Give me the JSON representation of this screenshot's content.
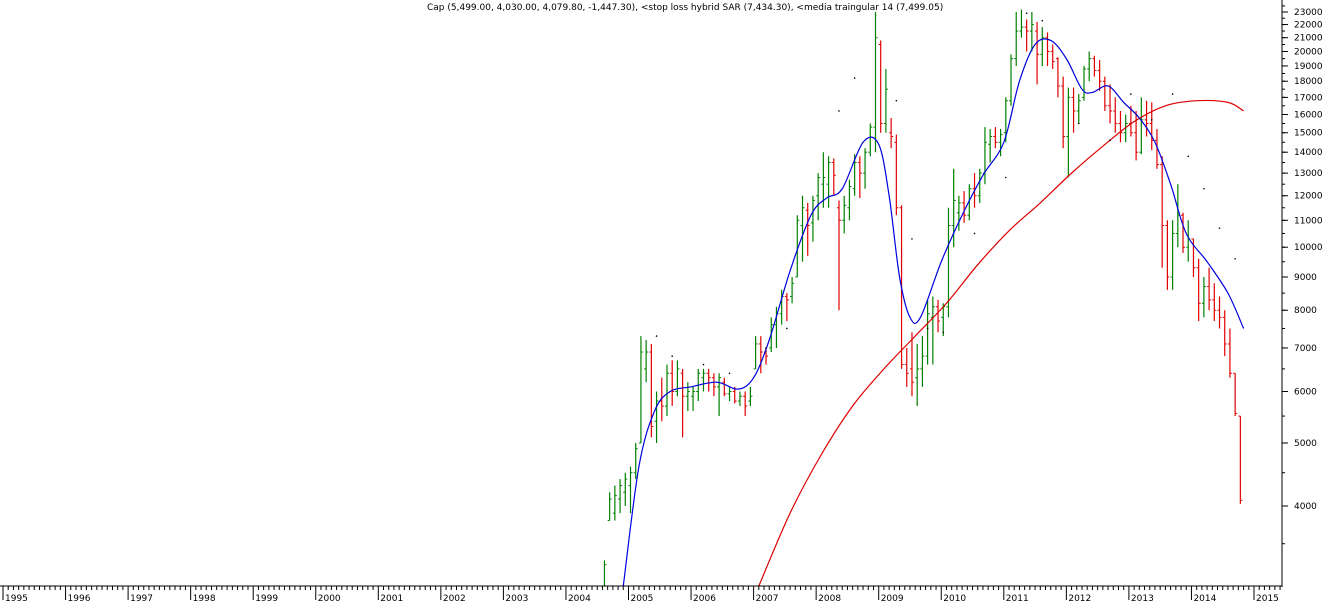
{
  "chart_data": {
    "type": "line",
    "title": "Cap (5,499.00, 4,030.00, 4,079.80, -1,447.30), <stop loss hybrid SAR (7,434.30), <media traingular 14 (7,499.05)",
    "y_scale": "log",
    "ylim": [
      3000,
      23500
    ],
    "xlim": [
      "1995-01",
      "2015-12"
    ],
    "y_ticks": [
      4000,
      5000,
      6000,
      7000,
      8000,
      9000,
      10000,
      11000,
      12000,
      13000,
      14000,
      15000,
      16000,
      17000,
      18000,
      19000,
      20000,
      21000,
      22000,
      23000
    ],
    "x_ticks": [
      "1995",
      "1996",
      "1997",
      "1998",
      "1999",
      "2000",
      "2001",
      "2002",
      "2003",
      "2004",
      "2005",
      "2006",
      "2007",
      "2008",
      "2009",
      "2010",
      "2011",
      "2012",
      "2013",
      "2014",
      "2015"
    ],
    "colors": {
      "up_bar": "#008000",
      "down_bar": "#e00000",
      "neutral_bar": "#000000",
      "triangular_ma": "#0000dd",
      "long_ma": "#dd0000",
      "sar": "#000000",
      "axis": "#000000"
    },
    "grid": false,
    "bars_monthly": [
      {
        "t": "2004-08",
        "o": 3000,
        "h": 3300,
        "l": 2800,
        "c": 3250
      },
      {
        "t": "2004-09",
        "o": 3800,
        "h": 4200,
        "l": 3800,
        "c": 4100
      },
      {
        "t": "2004-10",
        "o": 3900,
        "h": 4300,
        "l": 3800,
        "c": 4150
      },
      {
        "t": "2004-11",
        "o": 4100,
        "h": 4400,
        "l": 3900,
        "c": 4300
      },
      {
        "t": "2004-12",
        "o": 4200,
        "h": 4500,
        "l": 4000,
        "c": 4400
      },
      {
        "t": "2005-01",
        "o": 4300,
        "h": 4600,
        "l": 3900,
        "c": 4500
      },
      {
        "t": "2005-02",
        "o": 4500,
        "h": 5000,
        "l": 4400,
        "c": 4900
      },
      {
        "t": "2005-03",
        "o": 5000,
        "h": 7300,
        "l": 5000,
        "c": 6900
      },
      {
        "t": "2005-04",
        "o": 6500,
        "h": 7200,
        "l": 6200,
        "c": 6900
      },
      {
        "t": "2005-05",
        "o": 6900,
        "h": 7100,
        "l": 5100,
        "c": 5300
      },
      {
        "t": "2005-06",
        "o": 5400,
        "h": 6000,
        "l": 5000,
        "c": 5800
      },
      {
        "t": "2005-07",
        "o": 5800,
        "h": 6300,
        "l": 5400,
        "c": 5700
      },
      {
        "t": "2005-08",
        "o": 5700,
        "h": 6600,
        "l": 5500,
        "c": 6400
      },
      {
        "t": "2005-09",
        "o": 6400,
        "h": 6700,
        "l": 5700,
        "c": 6000
      },
      {
        "t": "2005-10",
        "o": 6000,
        "h": 6700,
        "l": 5900,
        "c": 6500
      },
      {
        "t": "2005-11",
        "o": 6400,
        "h": 6500,
        "l": 5100,
        "c": 5900
      },
      {
        "t": "2005-12",
        "o": 5900,
        "h": 6200,
        "l": 5600,
        "c": 6000
      },
      {
        "t": "2006-01",
        "o": 5900,
        "h": 6100,
        "l": 5600,
        "c": 6000
      },
      {
        "t": "2006-02",
        "o": 6000,
        "h": 6500,
        "l": 5800,
        "c": 6400
      },
      {
        "t": "2006-03",
        "o": 6300,
        "h": 6500,
        "l": 6000,
        "c": 6400
      },
      {
        "t": "2006-04",
        "o": 6400,
        "h": 6500,
        "l": 6000,
        "c": 6300
      },
      {
        "t": "2006-05",
        "o": 6300,
        "h": 6400,
        "l": 5900,
        "c": 6100
      },
      {
        "t": "2006-06",
        "o": 6100,
        "h": 6400,
        "l": 5500,
        "c": 6300
      },
      {
        "t": "2006-07",
        "o": 6200,
        "h": 6300,
        "l": 5900,
        "c": 5950
      },
      {
        "t": "2006-08",
        "o": 5950,
        "h": 6100,
        "l": 5800,
        "c": 6000
      },
      {
        "t": "2006-09",
        "o": 6000,
        "h": 6100,
        "l": 5750,
        "c": 5800
      },
      {
        "t": "2006-10",
        "o": 5800,
        "h": 6000,
        "l": 5700,
        "c": 5900
      },
      {
        "t": "2006-11",
        "o": 5900,
        "h": 6000,
        "l": 5500,
        "c": 5700
      },
      {
        "t": "2006-12",
        "o": 5800,
        "h": 6100,
        "l": 5700,
        "c": 5900
      },
      {
        "t": "2007-01",
        "o": 6500,
        "h": 7300,
        "l": 6500,
        "c": 7100
      },
      {
        "t": "2007-02",
        "o": 7100,
        "h": 7300,
        "l": 6400,
        "c": 6900
      },
      {
        "t": "2007-03",
        "o": 6900,
        "h": 7000,
        "l": 6600,
        "c": 6800
      },
      {
        "t": "2007-04",
        "o": 7000,
        "h": 7800,
        "l": 6900,
        "c": 7600
      },
      {
        "t": "2007-05",
        "o": 7600,
        "h": 8100,
        "l": 7000,
        "c": 7900
      },
      {
        "t": "2007-06",
        "o": 7900,
        "h": 8600,
        "l": 7600,
        "c": 8400
      },
      {
        "t": "2007-07",
        "o": 8400,
        "h": 8500,
        "l": 7700,
        "c": 8300
      },
      {
        "t": "2007-08",
        "o": 8400,
        "h": 9000,
        "l": 8200,
        "c": 8800
      },
      {
        "t": "2007-09",
        "o": 9000,
        "h": 11200,
        "l": 9000,
        "c": 11000
      },
      {
        "t": "2007-10",
        "o": 10800,
        "h": 12000,
        "l": 9500,
        "c": 11500
      },
      {
        "t": "2007-11",
        "o": 11400,
        "h": 11700,
        "l": 9700,
        "c": 10800
      },
      {
        "t": "2007-12",
        "o": 10900,
        "h": 12000,
        "l": 10200,
        "c": 11800
      },
      {
        "t": "2008-01",
        "o": 12000,
        "h": 13000,
        "l": 11000,
        "c": 12800
      },
      {
        "t": "2008-02",
        "o": 12500,
        "h": 14000,
        "l": 11500,
        "c": 12800
      },
      {
        "t": "2008-03",
        "o": 12500,
        "h": 13800,
        "l": 11500,
        "c": 13500
      },
      {
        "t": "2008-04",
        "o": 13500,
        "h": 13700,
        "l": 12000,
        "c": 12900
      },
      {
        "t": "2008-05",
        "o": 11500,
        "h": 11800,
        "l": 8000,
        "c": 11000
      },
      {
        "t": "2008-06",
        "o": 11000,
        "h": 12000,
        "l": 10500,
        "c": 11600
      },
      {
        "t": "2008-07",
        "o": 11500,
        "h": 12700,
        "l": 11000,
        "c": 12400
      },
      {
        "t": "2008-08",
        "o": 12300,
        "h": 13900,
        "l": 12000,
        "c": 13500
      },
      {
        "t": "2008-09",
        "o": 13500,
        "h": 13800,
        "l": 11900,
        "c": 13000
      },
      {
        "t": "2008-10",
        "o": 13000,
        "h": 14200,
        "l": 12300,
        "c": 14000
      },
      {
        "t": "2008-11",
        "o": 14000,
        "h": 15500,
        "l": 13800,
        "c": 15300
      },
      {
        "t": "2008-12",
        "o": 15300,
        "h": 23000,
        "l": 14000,
        "c": 21000
      },
      {
        "t": "2009-01",
        "o": 20500,
        "h": 20800,
        "l": 15000,
        "c": 15500
      },
      {
        "t": "2009-02",
        "o": 15500,
        "h": 18800,
        "l": 15000,
        "c": 17500
      },
      {
        "t": "2009-03",
        "o": 15000,
        "h": 15800,
        "l": 14200,
        "c": 14800
      },
      {
        "t": "2009-04",
        "o": 14500,
        "h": 14900,
        "l": 11200,
        "c": 11500
      },
      {
        "t": "2009-05",
        "o": 11500,
        "h": 11600,
        "l": 6500,
        "c": 6600
      },
      {
        "t": "2009-06",
        "o": 6600,
        "h": 7000,
        "l": 6100,
        "c": 6400
      },
      {
        "t": "2009-07",
        "o": 6500,
        "h": 7400,
        "l": 5900,
        "c": 6200
      },
      {
        "t": "2009-08",
        "o": 6300,
        "h": 7100,
        "l": 5700,
        "c": 6500
      },
      {
        "t": "2009-09",
        "o": 6500,
        "h": 7300,
        "l": 6100,
        "c": 6800
      },
      {
        "t": "2009-10",
        "o": 6800,
        "h": 8300,
        "l": 6600,
        "c": 7900
      },
      {
        "t": "2009-11",
        "o": 7800,
        "h": 8400,
        "l": 6600,
        "c": 8100
      },
      {
        "t": "2009-12",
        "o": 8100,
        "h": 8300,
        "l": 7400,
        "c": 7700
      },
      {
        "t": "2010-01",
        "o": 7800,
        "h": 8200,
        "l": 7300,
        "c": 8100
      },
      {
        "t": "2010-02",
        "o": 8100,
        "h": 11500,
        "l": 7800,
        "c": 10800
      },
      {
        "t": "2010-03",
        "o": 10800,
        "h": 13200,
        "l": 10000,
        "c": 11800
      },
      {
        "t": "2010-04",
        "o": 11300,
        "h": 12000,
        "l": 10600,
        "c": 11700
      },
      {
        "t": "2010-05",
        "o": 11700,
        "h": 12200,
        "l": 10900,
        "c": 11200
      },
      {
        "t": "2010-06",
        "o": 11200,
        "h": 12500,
        "l": 11000,
        "c": 12300
      },
      {
        "t": "2010-07",
        "o": 12300,
        "h": 13000,
        "l": 11500,
        "c": 12000
      },
      {
        "t": "2010-08",
        "o": 12000,
        "h": 13200,
        "l": 11700,
        "c": 13000
      },
      {
        "t": "2010-09",
        "o": 13000,
        "h": 15300,
        "l": 12500,
        "c": 14500
      },
      {
        "t": "2010-10",
        "o": 14400,
        "h": 15200,
        "l": 13500,
        "c": 14800
      },
      {
        "t": "2010-11",
        "o": 14800,
        "h": 15300,
        "l": 14200,
        "c": 14500
      },
      {
        "t": "2010-12",
        "o": 14500,
        "h": 15200,
        "l": 13800,
        "c": 14900
      },
      {
        "t": "2011-01",
        "o": 15000,
        "h": 17000,
        "l": 14500,
        "c": 16800
      },
      {
        "t": "2011-02",
        "o": 16800,
        "h": 19800,
        "l": 16500,
        "c": 19500
      },
      {
        "t": "2011-03",
        "o": 19500,
        "h": 23000,
        "l": 19000,
        "c": 21500
      },
      {
        "t": "2011-04",
        "o": 21500,
        "h": 23200,
        "l": 21000,
        "c": 21800
      },
      {
        "t": "2011-05",
        "o": 21800,
        "h": 22400,
        "l": 20000,
        "c": 21500
      },
      {
        "t": "2011-06",
        "o": 21500,
        "h": 23000,
        "l": 20000,
        "c": 22000
      },
      {
        "t": "2011-07",
        "o": 21500,
        "h": 22200,
        "l": 17800,
        "c": 19800
      },
      {
        "t": "2011-08",
        "o": 19800,
        "h": 21800,
        "l": 19000,
        "c": 21000
      },
      {
        "t": "2011-09",
        "o": 21000,
        "h": 21400,
        "l": 19000,
        "c": 20000
      },
      {
        "t": "2011-10",
        "o": 20000,
        "h": 20500,
        "l": 18800,
        "c": 19300
      },
      {
        "t": "2011-11",
        "o": 19500,
        "h": 19600,
        "l": 17000,
        "c": 17700
      },
      {
        "t": "2011-12",
        "o": 17700,
        "h": 18300,
        "l": 14200,
        "c": 14800
      },
      {
        "t": "2012-01",
        "o": 14800,
        "h": 17600,
        "l": 12800,
        "c": 17000
      },
      {
        "t": "2012-02",
        "o": 17000,
        "h": 17600,
        "l": 15000,
        "c": 16200
      },
      {
        "t": "2012-03",
        "o": 16200,
        "h": 17200,
        "l": 15500,
        "c": 16800
      },
      {
        "t": "2012-04",
        "o": 17000,
        "h": 19000,
        "l": 16800,
        "c": 18800
      },
      {
        "t": "2012-05",
        "o": 18800,
        "h": 20000,
        "l": 18000,
        "c": 19500
      },
      {
        "t": "2012-06",
        "o": 19500,
        "h": 19700,
        "l": 18300,
        "c": 18700
      },
      {
        "t": "2012-07",
        "o": 18700,
        "h": 19400,
        "l": 17400,
        "c": 18000
      },
      {
        "t": "2012-08",
        "o": 18000,
        "h": 18300,
        "l": 16200,
        "c": 16500
      },
      {
        "t": "2012-09",
        "o": 16500,
        "h": 17800,
        "l": 15500,
        "c": 16200
      },
      {
        "t": "2012-10",
        "o": 16200,
        "h": 17000,
        "l": 15000,
        "c": 15500
      },
      {
        "t": "2012-11",
        "o": 15500,
        "h": 16200,
        "l": 14500,
        "c": 15000
      },
      {
        "t": "2012-12",
        "o": 15000,
        "h": 16000,
        "l": 14500,
        "c": 15500
      },
      {
        "t": "2013-01",
        "o": 15500,
        "h": 16500,
        "l": 14800,
        "c": 15000
      },
      {
        "t": "2013-02",
        "o": 15000,
        "h": 16200,
        "l": 13600,
        "c": 14000
      },
      {
        "t": "2013-03",
        "o": 14000,
        "h": 17000,
        "l": 13900,
        "c": 15700
      },
      {
        "t": "2013-04",
        "o": 15700,
        "h": 16800,
        "l": 14800,
        "c": 15500
      },
      {
        "t": "2013-05",
        "o": 15500,
        "h": 16700,
        "l": 14100,
        "c": 14600
      },
      {
        "t": "2013-06",
        "o": 14600,
        "h": 15200,
        "l": 13200,
        "c": 13400
      },
      {
        "t": "2013-07",
        "o": 13400,
        "h": 13800,
        "l": 9300,
        "c": 10800
      },
      {
        "t": "2013-08",
        "o": 10800,
        "h": 11000,
        "l": 8600,
        "c": 9000
      },
      {
        "t": "2013-09",
        "o": 9000,
        "h": 11000,
        "l": 8600,
        "c": 10500
      },
      {
        "t": "2013-10",
        "o": 10500,
        "h": 12500,
        "l": 10000,
        "c": 11200
      },
      {
        "t": "2013-11",
        "o": 11200,
        "h": 11300,
        "l": 9800,
        "c": 10000
      },
      {
        "t": "2013-12",
        "o": 10000,
        "h": 11000,
        "l": 9500,
        "c": 10300
      },
      {
        "t": "2014-01",
        "o": 10300,
        "h": 10300,
        "l": 9000,
        "c": 9300
      },
      {
        "t": "2014-02",
        "o": 9300,
        "h": 9600,
        "l": 7700,
        "c": 8200
      },
      {
        "t": "2014-03",
        "o": 8200,
        "h": 9000,
        "l": 7800,
        "c": 8700
      },
      {
        "t": "2014-04",
        "o": 8700,
        "h": 9300,
        "l": 8000,
        "c": 8300
      },
      {
        "t": "2014-05",
        "o": 8300,
        "h": 8800,
        "l": 7700,
        "c": 8000
      },
      {
        "t": "2014-06",
        "o": 8000,
        "h": 8400,
        "l": 7500,
        "c": 7800
      },
      {
        "t": "2014-07",
        "o": 7800,
        "h": 8000,
        "l": 6800,
        "c": 7100
      },
      {
        "t": "2014-08",
        "o": 7100,
        "h": 7500,
        "l": 6300,
        "c": 6400
      },
      {
        "t": "2014-09",
        "o": 6400,
        "h": 6400,
        "l": 5500,
        "c": 5550
      },
      {
        "t": "2014-10",
        "o": 5500,
        "h": 5500,
        "l": 4030,
        "c": 4080
      }
    ],
    "triangular_ma": [
      [
        "2004-12",
        3000
      ],
      [
        "2005-03",
        4600
      ],
      [
        "2005-06",
        5600
      ],
      [
        "2005-09",
        6000
      ],
      [
        "2006-01",
        6100
      ],
      [
        "2006-06",
        6200
      ],
      [
        "2006-10",
        6050
      ],
      [
        "2007-01",
        6300
      ],
      [
        "2007-04",
        7200
      ],
      [
        "2007-08",
        9200
      ],
      [
        "2007-12",
        11200
      ],
      [
        "2008-03",
        11900
      ],
      [
        "2008-06",
        12300
      ],
      [
        "2008-10",
        14500
      ],
      [
        "2009-01",
        14400
      ],
      [
        "2009-03",
        12000
      ],
      [
        "2009-05",
        9000
      ],
      [
        "2009-07",
        7800
      ],
      [
        "2009-09",
        7800
      ],
      [
        "2010-01",
        9500
      ],
      [
        "2010-05",
        11200
      ],
      [
        "2010-09",
        12900
      ],
      [
        "2011-01",
        14500
      ],
      [
        "2011-04",
        18000
      ],
      [
        "2011-07",
        20500
      ],
      [
        "2011-10",
        20800
      ],
      [
        "2012-01",
        19500
      ],
      [
        "2012-04",
        17500
      ],
      [
        "2012-06",
        17300
      ],
      [
        "2012-09",
        17700
      ],
      [
        "2012-12",
        16700
      ],
      [
        "2013-03",
        15800
      ],
      [
        "2013-06",
        14500
      ],
      [
        "2013-09",
        12500
      ],
      [
        "2013-12",
        10500
      ],
      [
        "2014-04",
        9500
      ],
      [
        "2014-08",
        8500
      ],
      [
        "2014-11",
        7500
      ]
    ],
    "long_ma": [
      [
        "2007-02",
        3000
      ],
      [
        "2007-08",
        3900
      ],
      [
        "2008-02",
        4800
      ],
      [
        "2008-08",
        5700
      ],
      [
        "2009-02",
        6500
      ],
      [
        "2009-08",
        7300
      ],
      [
        "2010-02",
        8200
      ],
      [
        "2010-08",
        9400
      ],
      [
        "2011-02",
        10600
      ],
      [
        "2011-08",
        11700
      ],
      [
        "2012-02",
        13000
      ],
      [
        "2012-08",
        14300
      ],
      [
        "2013-02",
        15600
      ],
      [
        "2013-08",
        16500
      ],
      [
        "2014-02",
        16800
      ],
      [
        "2014-08",
        16700
      ],
      [
        "2014-11",
        16200
      ]
    ],
    "sar_points": [
      [
        "2005-06",
        7300
      ],
      [
        "2005-09",
        6800
      ],
      [
        "2006-03",
        6600
      ],
      [
        "2006-08",
        6400
      ],
      [
        "2007-03",
        7000
      ],
      [
        "2007-07",
        7500
      ],
      [
        "2008-05",
        16200
      ],
      [
        "2008-08",
        18200
      ],
      [
        "2009-04",
        16800
      ],
      [
        "2009-07",
        10300
      ],
      [
        "2009-10",
        7500
      ],
      [
        "2010-01",
        7400
      ],
      [
        "2010-07",
        10500
      ],
      [
        "2011-01",
        12800
      ],
      [
        "2011-05",
        22900
      ],
      [
        "2011-08",
        22300
      ],
      [
        "2012-03",
        15500
      ],
      [
        "2012-09",
        14600
      ],
      [
        "2013-01",
        17200
      ],
      [
        "2013-05",
        15700
      ],
      [
        "2013-09",
        17200
      ],
      [
        "2013-12",
        13800
      ],
      [
        "2014-03",
        12300
      ],
      [
        "2014-06",
        10700
      ],
      [
        "2014-09",
        9600
      ]
    ]
  }
}
